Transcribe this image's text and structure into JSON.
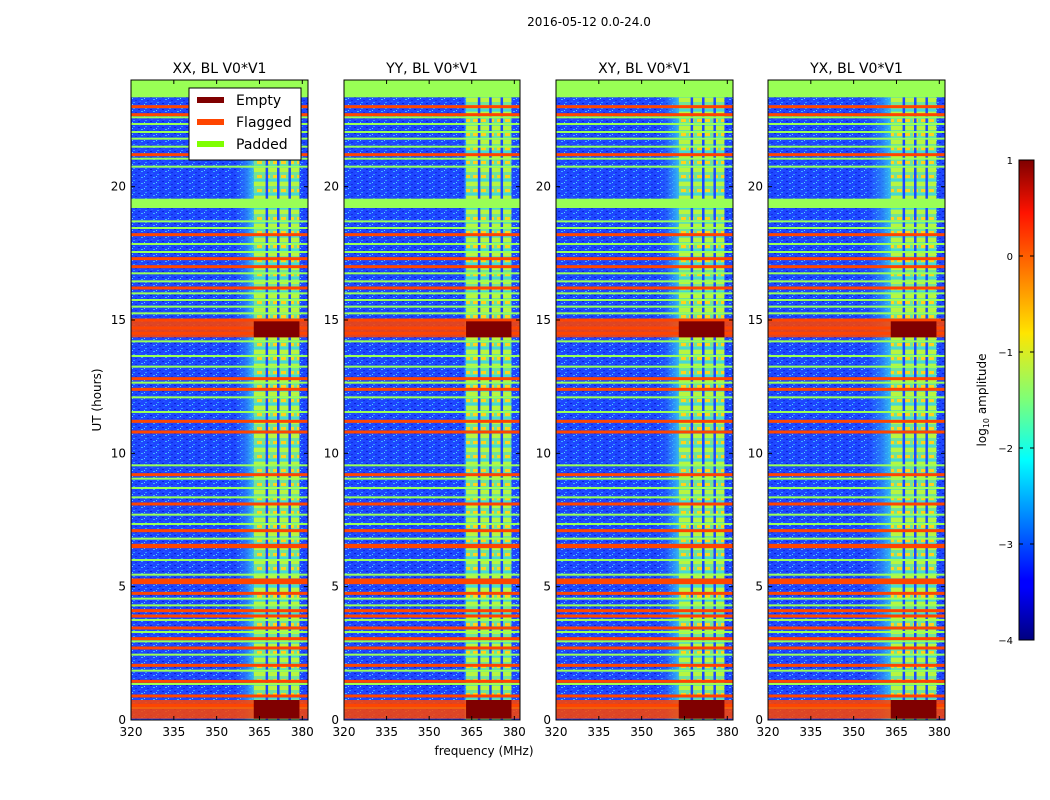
{
  "figure": {
    "suptitle": "2016-05-12 0.0-24.0"
  },
  "chart_data": {
    "type": "heatmap",
    "panels": [
      {
        "title": "XX, BL V0*V1",
        "strong_band_start_mhz": 363,
        "diffuse_onset_mhz": 356
      },
      {
        "title": "YY, BL V0*V1",
        "strong_band_start_mhz": 363,
        "diffuse_onset_mhz": 362
      },
      {
        "title": "XY, BL V0*V1",
        "strong_band_start_mhz": 363,
        "diffuse_onset_mhz": 356
      },
      {
        "title": "YX, BL V0*V1",
        "strong_band_start_mhz": 363,
        "diffuse_onset_mhz": 354
      }
    ],
    "xlabel": "frequency (MHz)",
    "ylabel": "UT (hours)",
    "xlim": [
      320,
      382
    ],
    "ylim": [
      0,
      24
    ],
    "xticks": [
      320,
      335,
      350,
      365,
      380
    ],
    "xtick_labels": [
      "320",
      "335",
      "350",
      "365",
      "380"
    ],
    "yticks": [
      0,
      5,
      10,
      15,
      20
    ],
    "ytick_labels": [
      "0",
      "5",
      "10",
      "15",
      "20"
    ],
    "band_edges_mhz": [
      363,
      367.5,
      371.5,
      375.5,
      379
    ],
    "band_gaps_mhz": [
      367.5,
      371.5,
      375.5
    ],
    "flagged_hours": [
      0.55,
      0.9,
      1.45,
      2.05,
      2.7,
      3.05,
      3.45,
      3.9,
      4.1,
      4.75,
      5.15,
      5.25,
      6.5,
      6.55,
      7.1,
      8.1,
      9.2,
      10.8,
      11.2,
      12.4,
      12.8,
      14.5,
      14.7,
      15.0,
      16.2,
      17.0,
      17.3,
      18.2,
      21.2,
      22.7,
      23.0
    ],
    "padded_intervals_hours": [
      [
        23.35,
        24.0
      ],
      [
        19.2,
        19.55
      ]
    ],
    "padded_lines_hours": [
      0.45,
      1.35,
      1.85,
      2.45,
      2.95,
      3.3,
      3.75,
      4.3,
      4.55,
      5.45,
      6.0,
      6.8,
      7.35,
      7.7,
      8.35,
      8.7,
      9.05,
      9.55,
      11.55,
      12.1,
      12.65,
      13.25,
      13.65,
      14.2,
      15.25,
      15.5,
      15.75,
      16.0,
      16.45,
      16.75,
      17.55,
      17.85,
      18.45,
      18.7,
      20.75,
      21.05,
      21.5,
      21.8,
      22.05,
      22.35,
      22.6
    ],
    "empty_intervals_hours": [
      [
        0.05,
        0.75
      ],
      [
        14.35,
        14.95
      ]
    ],
    "legend": {
      "location": "upper-left of first panel",
      "entries": [
        {
          "label": "Empty",
          "color": "#800000"
        },
        {
          "label": "Flagged",
          "color": "#ff4500"
        },
        {
          "label": "Padded",
          "color": "#7fff00"
        }
      ]
    },
    "colorbar": {
      "label": "log10 amplitude",
      "label_base": "log",
      "label_sub": "10",
      "label_rest": " amplitude",
      "range": [
        -4,
        1
      ],
      "ticks": [
        1,
        0,
        -1,
        -2,
        -3,
        -4
      ],
      "tick_labels": [
        "1",
        "0",
        "−1",
        "−2",
        "−3",
        "−4"
      ],
      "colormap": "jet"
    }
  },
  "colors": {
    "empty": "#800000",
    "flagged": "#ff4500",
    "padded": "#7fff00",
    "padded_fill": "#99ff55",
    "background_signal": "#1e46ff"
  }
}
